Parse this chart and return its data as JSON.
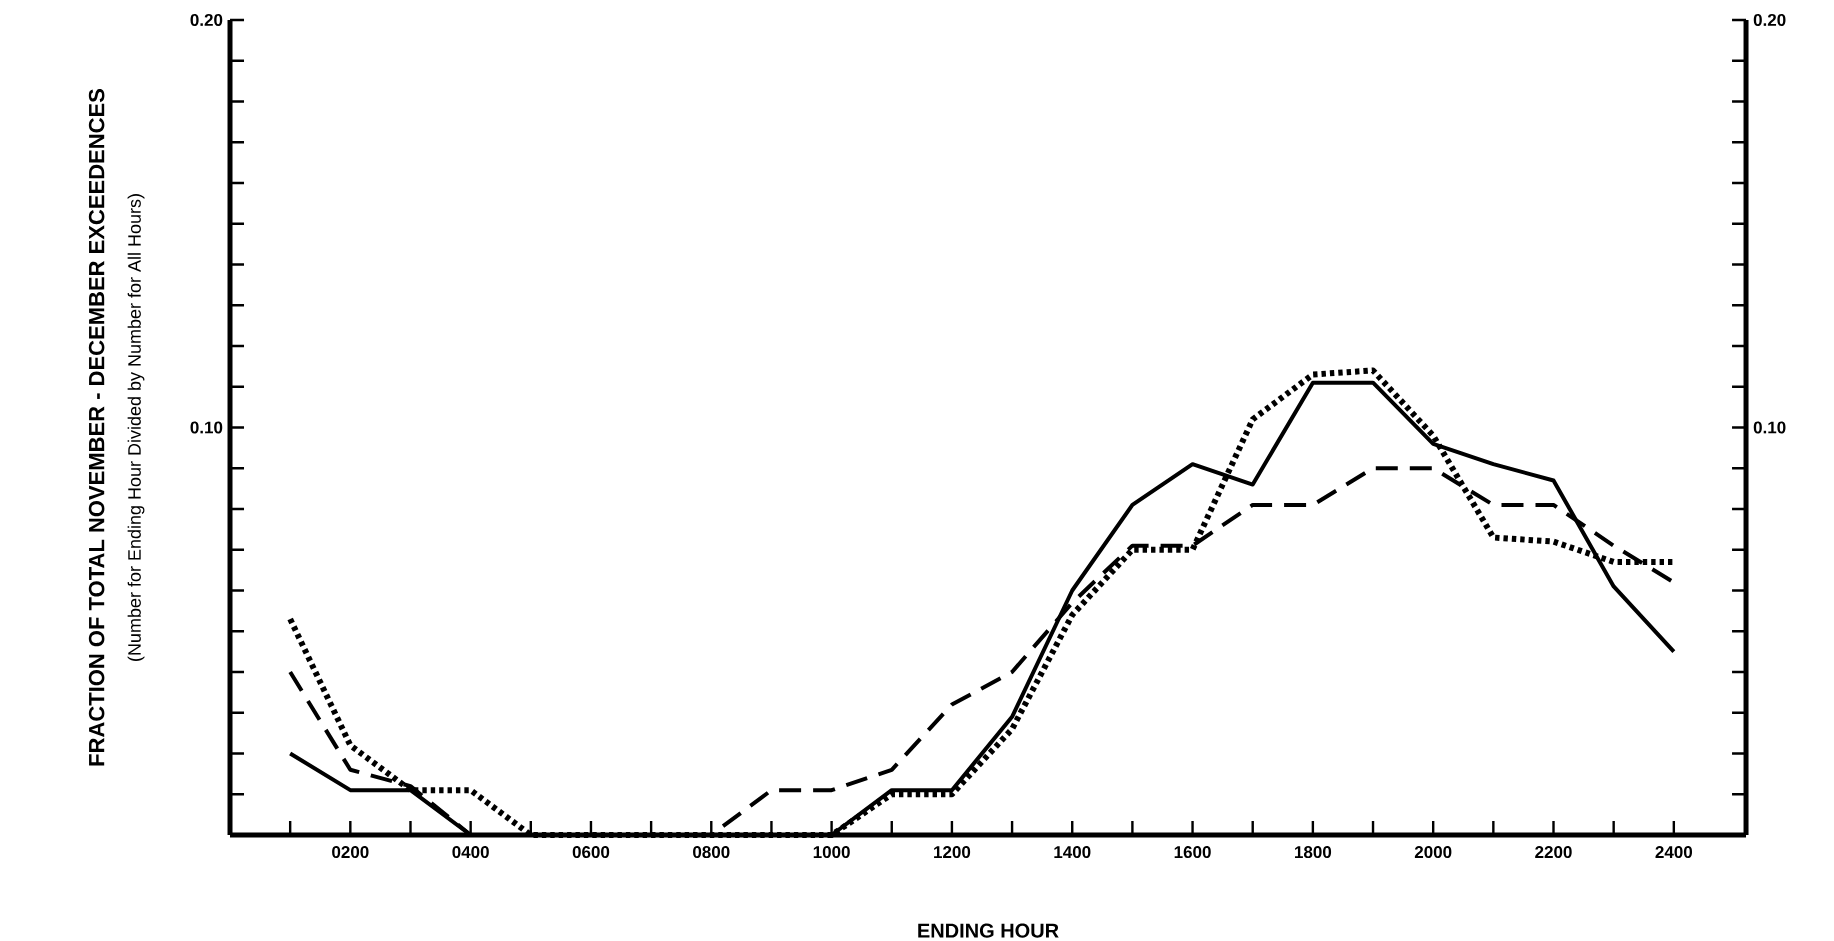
{
  "chart_data": {
    "type": "line",
    "xlabel": "ENDING HOUR",
    "ylabel": "FRACTION OF TOTAL NOVEMBER - DECEMBER EXCEEDENCES",
    "annotations": [
      "(Number for Ending Hour Divided by Number for All Hours)"
    ],
    "x": [
      100,
      200,
      300,
      400,
      500,
      600,
      700,
      800,
      900,
      1000,
      1100,
      1200,
      1300,
      1400,
      1500,
      1600,
      1700,
      1800,
      1900,
      2000,
      2100,
      2200,
      2300,
      2400
    ],
    "series": [
      {
        "color": "#000000",
        "line_style": "solid",
        "values": [
          0.02,
          0.011,
          0.011,
          0,
          0,
          0,
          0,
          0,
          0,
          0,
          0.011,
          0.011,
          0.029,
          0.06,
          0.081,
          0.091,
          0.086,
          0.111,
          0.111,
          0.096,
          0.091,
          0.087,
          0.061,
          0.045
        ]
      },
      {
        "color": "#000000",
        "line_style": "dashed",
        "values": [
          0.04,
          0.016,
          0.012,
          0,
          0,
          0,
          0,
          0,
          0.011,
          0.011,
          0.016,
          0.032,
          0.04,
          0.057,
          0.071,
          0.071,
          0.081,
          0.081,
          0.09,
          0.09,
          0.081,
          0.081,
          0.071,
          0.062
        ]
      },
      {
        "color": "#000000",
        "line_style": "dotted",
        "values": [
          0.053,
          0.022,
          0.011,
          0.011,
          0,
          0,
          0,
          0,
          0,
          0,
          0.01,
          0.01,
          0.026,
          0.054,
          0.07,
          0.07,
          0.102,
          0.113,
          0.114,
          0.098,
          0.073,
          0.072,
          0.067,
          0.067
        ]
      }
    ],
    "xlim": [
      0,
      2520
    ],
    "xticks": [
      {
        "value": 100,
        "label": null
      },
      {
        "value": 200,
        "label": "0200"
      },
      {
        "value": 300,
        "label": null
      },
      {
        "value": 400,
        "label": "0400"
      },
      {
        "value": 500,
        "label": null
      },
      {
        "value": 600,
        "label": "0600"
      },
      {
        "value": 700,
        "label": null
      },
      {
        "value": 800,
        "label": "0800"
      },
      {
        "value": 900,
        "label": null
      },
      {
        "value": 1000,
        "label": "1000"
      },
      {
        "value": 1100,
        "label": null
      },
      {
        "value": 1200,
        "label": "1200"
      },
      {
        "value": 1300,
        "label": null
      },
      {
        "value": 1400,
        "label": "1400"
      },
      {
        "value": 1500,
        "label": null
      },
      {
        "value": 1600,
        "label": "1600"
      },
      {
        "value": 1700,
        "label": null
      },
      {
        "value": 1800,
        "label": "1800"
      },
      {
        "value": 1900,
        "label": null
      },
      {
        "value": 2000,
        "label": "2000"
      },
      {
        "value": 2100,
        "label": null
      },
      {
        "value": 2200,
        "label": "2200"
      },
      {
        "value": 2300,
        "label": null
      },
      {
        "value": 2400,
        "label": "2400"
      }
    ],
    "ylim": [
      0,
      0.2
    ],
    "yticks": [
      {
        "value": 0.01,
        "label": null
      },
      {
        "value": 0.02,
        "label": null
      },
      {
        "value": 0.03,
        "label": null
      },
      {
        "value": 0.04,
        "label": null
      },
      {
        "value": 0.05,
        "label": null
      },
      {
        "value": 0.06,
        "label": null
      },
      {
        "value": 0.07,
        "label": null
      },
      {
        "value": 0.08,
        "label": null
      },
      {
        "value": 0.09,
        "label": null
      },
      {
        "value": 0.1,
        "label": "0.10"
      },
      {
        "value": 0.11,
        "label": null
      },
      {
        "value": 0.12,
        "label": null
      },
      {
        "value": 0.13,
        "label": null
      },
      {
        "value": 0.14,
        "label": null
      },
      {
        "value": 0.15,
        "label": null
      },
      {
        "value": 0.16,
        "label": null
      },
      {
        "value": 0.17,
        "label": null
      },
      {
        "value": 0.18,
        "label": null
      },
      {
        "value": 0.19,
        "label": null
      },
      {
        "value": 0.2,
        "label": "0.20"
      }
    ],
    "y2lim": [
      0,
      0.2
    ],
    "y2ticks": [
      {
        "value": 0.01,
        "label": null
      },
      {
        "value": 0.02,
        "label": null
      },
      {
        "value": 0.03,
        "label": null
      },
      {
        "value": 0.04,
        "label": null
      },
      {
        "value": 0.05,
        "label": null
      },
      {
        "value": 0.06,
        "label": null
      },
      {
        "value": 0.07,
        "label": null
      },
      {
        "value": 0.08,
        "label": null
      },
      {
        "value": 0.09,
        "label": null
      },
      {
        "value": 0.1,
        "label": "0.10"
      },
      {
        "value": 0.11,
        "label": null
      },
      {
        "value": 0.12,
        "label": null
      },
      {
        "value": 0.13,
        "label": null
      },
      {
        "value": 0.14,
        "label": null
      },
      {
        "value": 0.15,
        "label": null
      },
      {
        "value": 0.16,
        "label": null
      },
      {
        "value": 0.17,
        "label": null
      },
      {
        "value": 0.18,
        "label": null
      },
      {
        "value": 0.19,
        "label": null
      },
      {
        "value": 0.2,
        "label": "0.20"
      }
    ]
  }
}
